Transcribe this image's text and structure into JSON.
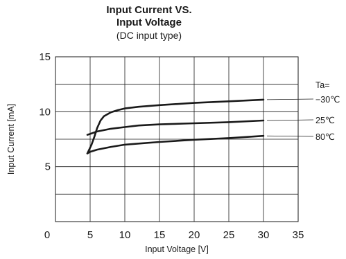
{
  "chart_data": {
    "type": "line",
    "title": "Input Current VS.",
    "title_line2": "Input Voltage",
    "subtitle": "(DC input type)",
    "xlabel": "Input Voltage [V]",
    "ylabel": "Input Current [mA]",
    "xlim": [
      0,
      35
    ],
    "ylim": [
      0,
      15
    ],
    "xticks": [
      0,
      5,
      10,
      15,
      20,
      25,
      30,
      35
    ],
    "yticks": [
      5,
      10,
      15
    ],
    "grid": true,
    "legend_title": "Ta=",
    "series": [
      {
        "name": "−30℃",
        "x": [
          4.6,
          5.2,
          5.6,
          6.0,
          6.5,
          7.0,
          8.0,
          9.0,
          10.0,
          12.0,
          15.0,
          20.0,
          25.0,
          30.0
        ],
        "y": [
          6.2,
          7.0,
          7.7,
          8.5,
          9.2,
          9.6,
          9.95,
          10.15,
          10.3,
          10.45,
          10.6,
          10.8,
          10.95,
          11.1
        ]
      },
      {
        "name": "25℃",
        "x": [
          4.6,
          6.0,
          8.0,
          10.0,
          12.0,
          15.0,
          20.0,
          25.0,
          30.0
        ],
        "y": [
          7.9,
          8.2,
          8.45,
          8.6,
          8.75,
          8.85,
          8.95,
          9.05,
          9.2
        ]
      },
      {
        "name": "80℃",
        "x": [
          4.6,
          5.0,
          6.0,
          8.0,
          10.0,
          12.0,
          15.0,
          20.0,
          25.0,
          30.0
        ],
        "y": [
          6.2,
          6.35,
          6.55,
          6.8,
          7.0,
          7.1,
          7.25,
          7.45,
          7.6,
          7.8
        ]
      }
    ]
  }
}
